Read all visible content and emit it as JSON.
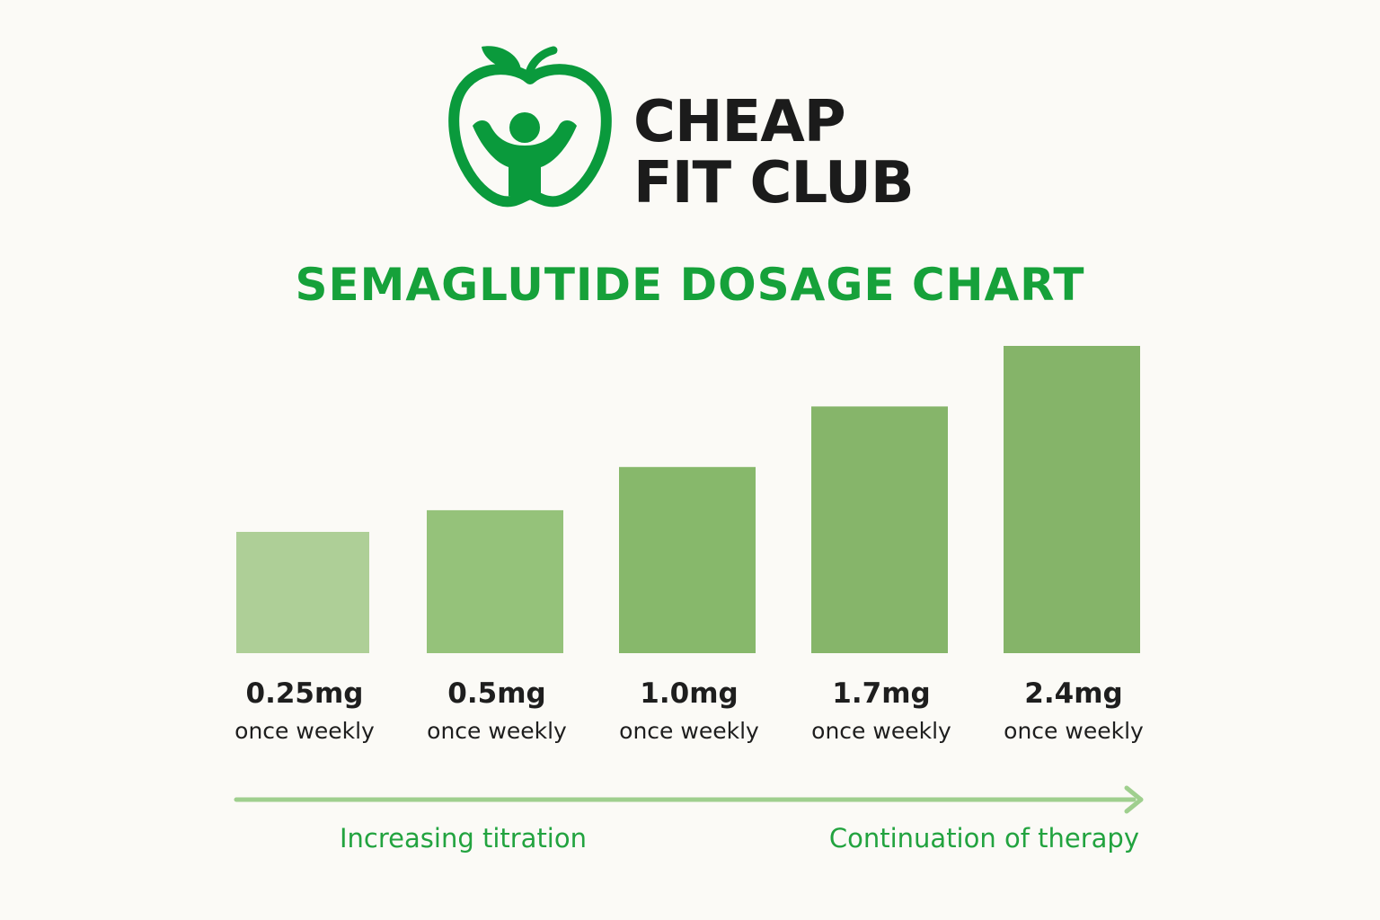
{
  "brand": {
    "name_line1": "CHEAP",
    "name_line2": "FIT CLUB",
    "color": "#0a9a3c",
    "logo_icon": "apple-person-icon"
  },
  "chart_data": {
    "type": "bar",
    "title": "SEMAGLUTIDE DOSAGE CHART",
    "categories": [
      "0.25mg",
      "0.5mg",
      "1.0mg",
      "1.7mg",
      "2.4mg"
    ],
    "sublabels": [
      "once weekly",
      "once weekly",
      "once weekly",
      "once weekly",
      "once weekly"
    ],
    "series": [
      {
        "values": [
          0.25,
          0.5,
          1.0,
          1.7,
          2.4
        ]
      }
    ],
    "bar_colors": [
      "#aecf97",
      "#95c27a",
      "#87b86b",
      "#86b56a",
      "#85b469"
    ],
    "grid": false,
    "axes_visible": false
  },
  "phases": {
    "left_label": "Increasing titration",
    "right_label": "Continuation of therapy",
    "arrow_color": "#9fcf8e"
  }
}
